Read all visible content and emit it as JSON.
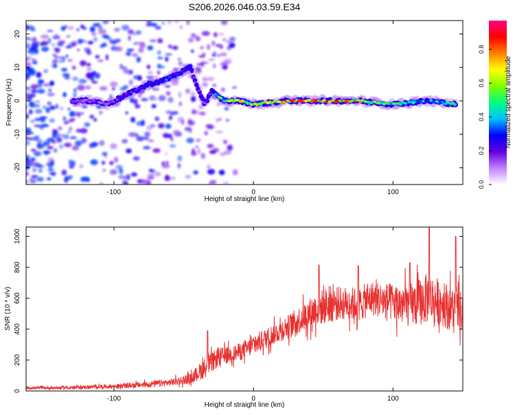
{
  "title": "S206.2026.046.03.59.E34",
  "chart_data": [
    {
      "type": "heatmap",
      "xlabel": "Height of straight line (km)",
      "ylabel": "Frequency (Hz)",
      "xlim": [
        -163,
        150
      ],
      "ylim": [
        -25,
        24
      ],
      "xticks": [
        -100,
        0,
        100
      ],
      "yticks": [
        -20,
        -10,
        0,
        10,
        20
      ],
      "colorbar": {
        "label": "Normalized spectral amplitude",
        "range": [
          0,
          0.97
        ],
        "ticks": [
          0.0,
          0.2,
          0.4,
          0.6,
          0.8
        ],
        "colormap": [
          "#ffffff",
          "#c080ff",
          "#6000e0",
          "#0000ff",
          "#00c0ff",
          "#00ff80",
          "#80ff00",
          "#ffff00",
          "#ff8000",
          "#ff0000",
          "#ff0080"
        ]
      },
      "ridge": {
        "x": [
          -130,
          -115,
          -105,
          -95,
          -85,
          -75,
          -65,
          -55,
          -50,
          -45,
          -42,
          -38,
          -35,
          -30,
          -25,
          -20,
          -10,
          0,
          25,
          50,
          75,
          100,
          125,
          145
        ],
        "frequency": [
          0,
          0,
          -1,
          1,
          3,
          5,
          6,
          8,
          9,
          10,
          6,
          2,
          -1,
          3,
          1,
          0,
          0,
          -1,
          0,
          0,
          0,
          -1,
          0,
          -1
        ],
        "amplitude": [
          0.15,
          0.2,
          0.2,
          0.25,
          0.3,
          0.3,
          0.35,
          0.35,
          0.3,
          0.25,
          0.2,
          0.25,
          0.2,
          0.3,
          0.5,
          0.7,
          0.8,
          0.6,
          0.9,
          0.9,
          0.8,
          0.6,
          0.5,
          0.5
        ]
      }
    },
    {
      "type": "line",
      "xlabel": "Height of straight line (km)",
      "ylabel": "SNR (10 * v/v)",
      "xlim": [
        -163,
        150
      ],
      "ylim": [
        0,
        1060
      ],
      "xticks": [
        -100,
        0,
        100
      ],
      "yticks": [
        0,
        200,
        400,
        600,
        800,
        1000
      ],
      "color": "#e83030",
      "envelope": {
        "x": [
          -163,
          -140,
          -120,
          -100,
          -80,
          -60,
          -45,
          -35,
          -25,
          -15,
          -5,
          5,
          15,
          25,
          35,
          45,
          55,
          65,
          75,
          85,
          95,
          105,
          115,
          125,
          135,
          145,
          150
        ],
        "mean": [
          20,
          20,
          25,
          30,
          40,
          55,
          80,
          150,
          220,
          240,
          270,
          320,
          370,
          420,
          470,
          530,
          560,
          570,
          560,
          600,
          580,
          560,
          560,
          600,
          570,
          520,
          500
        ],
        "spread": [
          12,
          12,
          15,
          18,
          25,
          30,
          45,
          90,
          80,
          70,
          80,
          90,
          90,
          100,
          120,
          150,
          160,
          140,
          150,
          150,
          160,
          180,
          200,
          220,
          200,
          190,
          180
        ]
      },
      "peaks": [
        {
          "x": -33,
          "y": 390
        },
        {
          "x": 47,
          "y": 815
        },
        {
          "x": 75,
          "y": 810
        },
        {
          "x": 112,
          "y": 830
        },
        {
          "x": 126,
          "y": 1055
        },
        {
          "x": 145,
          "y": 1000
        }
      ]
    }
  ]
}
